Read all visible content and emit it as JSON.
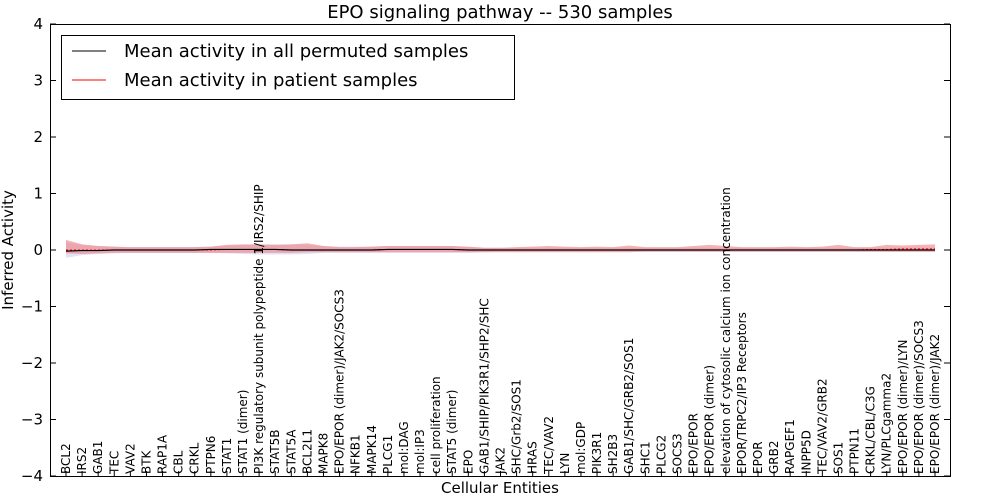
{
  "chart_data": {
    "type": "line",
    "title": "EPO signaling pathway -- 530 samples",
    "xlabel": "Cellular Entities",
    "ylabel": "Inferred Activity",
    "ylim": [
      -4,
      4
    ],
    "yticks": [
      -4,
      -3,
      -2,
      -1,
      0,
      1,
      2,
      3,
      4
    ],
    "ytick_labels": [
      "−4",
      "−3",
      "−2",
      "−1",
      "0",
      "1",
      "2",
      "3",
      "4"
    ],
    "legend_position": "upper-left",
    "categories": [
      "BCL2",
      "IRS2",
      "GAB1",
      "TEC",
      "VAV2",
      "BTK",
      "RAP1A",
      "CBL",
      "CRKL",
      "PTPN6",
      "STAT1",
      "STAT1 (dimer)",
      "PI3K regulatory subunit polypeptide 1/IRS2/SHIP",
      "STAT5B",
      "STAT5A",
      "BCL2L1",
      "MAPK8",
      "EPO/EPOR (dimer)/JAK2/SOCS3",
      "NFKB1",
      "MAPK14",
      "PLCG1",
      "mol:DAG",
      "mol:IP3",
      "cell proliferation",
      "STAT5 (dimer)",
      "EPO",
      "GAB1/SHIP/PIK3R1/SHP2/SHC",
      "JAK2",
      "SHC/Grb2/SOS1",
      "HRAS",
      "TEC/VAV2",
      "LYN",
      "mol:GDP",
      "PIK3R1",
      "SH2B3",
      "GAB1/SHC/GRB2/SOS1",
      "SHC1",
      "PLCG2",
      "SOCS3",
      "EPO/EPOR",
      "EPO/EPOR (dimer)",
      "elevation of cytosolic calcium ion concentration",
      "EPOR/TRPC2/IP3 Receptors",
      "EPOR",
      "GRB2",
      "RAPGEF1",
      "INPP5D",
      "TEC/VAV2/GRB2",
      "SOS1",
      "PTPN11",
      "CRKL/CBL/C3G",
      "LYN/PLCgamma2",
      "EPO/EPOR (dimer)/LYN",
      "EPO/EPOR (dimer)/SOCS3",
      "EPO/EPOR (dimer)/JAK2"
    ],
    "series": [
      {
        "name": "Mean activity in all permuted samples",
        "color": "#000000",
        "values": [
          -0.02,
          -0.01,
          -0.01,
          0.0,
          0.0,
          0.0,
          0.0,
          0.0,
          0.0,
          0.01,
          0.01,
          0.01,
          0.01,
          0.01,
          0.0,
          0.0,
          0.0,
          0.0,
          0.0,
          0.0,
          0.01,
          0.01,
          0.01,
          0.01,
          0.01,
          0.0,
          0.0,
          0.0,
          0.0,
          0.0,
          0.0,
          0.0,
          0.0,
          0.0,
          0.0,
          0.0,
          0.0,
          0.0,
          0.0,
          0.0,
          0.0,
          0.0,
          0.0,
          0.0,
          0.0,
          0.0,
          0.0,
          0.0,
          0.0,
          0.0,
          0.0,
          0.0,
          0.0,
          0.0,
          0.0
        ],
        "band_lower": [
          -0.14,
          -0.09,
          -0.07,
          -0.06,
          -0.05,
          -0.05,
          -0.05,
          -0.05,
          -0.05,
          -0.05,
          -0.06,
          -0.07,
          -0.08,
          -0.08,
          -0.08,
          -0.07,
          -0.05,
          -0.05,
          -0.05,
          -0.05,
          -0.05,
          -0.05,
          -0.05,
          -0.05,
          -0.05,
          -0.05,
          -0.04,
          -0.03,
          -0.03,
          -0.03,
          -0.03,
          -0.03,
          -0.03,
          -0.03,
          -0.03,
          -0.03,
          -0.03,
          -0.03,
          -0.03,
          -0.03,
          -0.03,
          -0.03,
          -0.03,
          -0.03,
          -0.03,
          -0.03,
          -0.03,
          -0.03,
          -0.03,
          -0.03,
          -0.03,
          -0.03,
          -0.03,
          -0.03,
          -0.03
        ],
        "band_upper": [
          0.14,
          0.09,
          0.07,
          0.06,
          0.05,
          0.05,
          0.05,
          0.05,
          0.05,
          0.06,
          0.08,
          0.09,
          0.1,
          0.1,
          0.1,
          0.09,
          0.07,
          0.06,
          0.06,
          0.06,
          0.07,
          0.07,
          0.07,
          0.07,
          0.07,
          0.05,
          0.04,
          0.04,
          0.04,
          0.04,
          0.04,
          0.04,
          0.04,
          0.04,
          0.04,
          0.04,
          0.04,
          0.04,
          0.04,
          0.04,
          0.04,
          0.04,
          0.04,
          0.04,
          0.04,
          0.04,
          0.04,
          0.04,
          0.04,
          0.04,
          0.04,
          0.04,
          0.04,
          0.04,
          0.04
        ]
      },
      {
        "name": "Mean activity in patient samples",
        "color": "#ff0000",
        "values": [
          0.0,
          0.0,
          0.0,
          0.0,
          0.0,
          0.0,
          0.0,
          0.0,
          0.0,
          0.0,
          0.01,
          0.01,
          0.01,
          0.01,
          0.0,
          0.0,
          0.0,
          0.0,
          0.0,
          0.0,
          0.01,
          0.01,
          0.01,
          0.01,
          0.01,
          0.0,
          0.0,
          0.0,
          0.0,
          0.0,
          0.0,
          0.0,
          0.0,
          0.0,
          0.0,
          0.0,
          0.0,
          0.0,
          0.0,
          0.0,
          0.0,
          0.0,
          0.0,
          0.0,
          0.0,
          0.0,
          0.0,
          0.0,
          0.0,
          0.0,
          0.01,
          0.01,
          0.02,
          0.02,
          0.02
        ],
        "band_lower": [
          -0.06,
          -0.07,
          -0.06,
          -0.05,
          -0.05,
          -0.05,
          -0.05,
          -0.05,
          -0.05,
          -0.05,
          -0.05,
          -0.05,
          -0.05,
          -0.05,
          -0.05,
          -0.04,
          -0.04,
          -0.04,
          -0.04,
          -0.04,
          -0.04,
          -0.04,
          -0.04,
          -0.04,
          -0.04,
          -0.04,
          -0.04,
          -0.04,
          -0.04,
          -0.04,
          -0.04,
          -0.04,
          -0.04,
          -0.04,
          -0.04,
          -0.04,
          -0.03,
          -0.03,
          -0.03,
          -0.03,
          -0.03,
          -0.03,
          -0.03,
          -0.03,
          -0.03,
          -0.03,
          -0.03,
          -0.03,
          -0.03,
          -0.03,
          -0.03,
          -0.03,
          -0.03,
          -0.03,
          -0.03
        ],
        "band_upper": [
          0.18,
          0.1,
          0.07,
          0.06,
          0.05,
          0.05,
          0.05,
          0.05,
          0.05,
          0.06,
          0.09,
          0.1,
          0.1,
          0.09,
          0.1,
          0.12,
          0.07,
          0.05,
          0.05,
          0.06,
          0.07,
          0.07,
          0.07,
          0.07,
          0.07,
          0.06,
          0.04,
          0.04,
          0.05,
          0.06,
          0.07,
          0.06,
          0.05,
          0.06,
          0.05,
          0.08,
          0.05,
          0.05,
          0.05,
          0.07,
          0.09,
          0.07,
          0.05,
          0.05,
          0.05,
          0.06,
          0.05,
          0.06,
          0.09,
          0.05,
          0.05,
          0.09,
          0.08,
          0.09,
          0.1
        ]
      }
    ]
  }
}
